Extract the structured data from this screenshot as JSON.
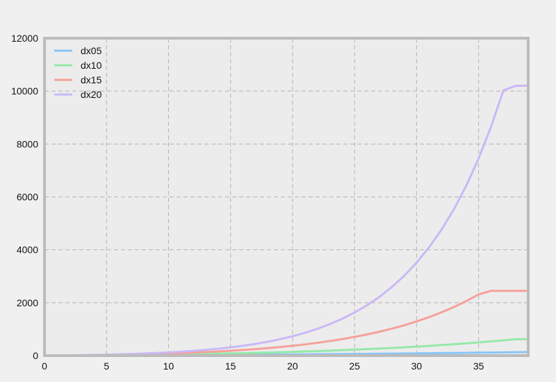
{
  "chart_data": {
    "type": "line",
    "title": "",
    "xlabel": "",
    "ylabel": "",
    "xlim": [
      0,
      39
    ],
    "ylim": [
      0,
      12000
    ],
    "xticks": [
      0,
      5,
      10,
      15,
      20,
      25,
      30,
      35
    ],
    "yticks": [
      0,
      2000,
      4000,
      6000,
      8000,
      10000,
      12000
    ],
    "grid": true,
    "legend_position": "top-left",
    "x": [
      0,
      1,
      2,
      3,
      4,
      5,
      6,
      7,
      8,
      9,
      10,
      11,
      12,
      13,
      14,
      15,
      16,
      17,
      18,
      19,
      20,
      21,
      22,
      23,
      24,
      25,
      26,
      27,
      28,
      29,
      30,
      31,
      32,
      33,
      34,
      35,
      36,
      37,
      38,
      39
    ],
    "series": [
      {
        "name": "dx05",
        "color": "#87c6f7",
        "values": [
          0,
          1,
          3,
          4,
          6,
          8,
          10,
          12,
          14,
          16,
          18,
          20,
          23,
          25,
          28,
          30,
          33,
          36,
          39,
          42,
          45,
          48,
          52,
          55,
          59,
          63,
          67,
          71,
          75,
          80,
          84,
          89,
          94,
          99,
          104,
          110,
          116,
          122,
          128,
          134
        ]
      },
      {
        "name": "dx10",
        "color": "#96e8a8",
        "values": [
          0,
          2,
          5,
          8,
          12,
          16,
          21,
          26,
          31,
          37,
          43,
          50,
          57,
          65,
          74,
          83,
          93,
          104,
          116,
          128,
          142,
          156,
          172,
          188,
          206,
          225,
          245,
          267,
          290,
          315,
          341,
          369,
          399,
          430,
          464,
          500,
          538,
          578,
          620,
          620
        ]
      },
      {
        "name": "dx15",
        "color": "#f6a09a",
        "values": [
          0,
          4,
          8,
          13,
          19,
          26,
          34,
          43,
          54,
          66,
          80,
          96,
          114,
          135,
          158,
          184,
          213,
          246,
          283,
          325,
          372,
          425,
          484,
          550,
          624,
          707,
          800,
          903,
          1019,
          1148,
          1292,
          1454,
          1634,
          1835,
          2060,
          2311,
          2450,
          2450,
          2450,
          2450
        ]
      },
      {
        "name": "dx20",
        "color": "#cab8f7",
        "values": [
          0,
          5,
          11,
          18,
          26,
          36,
          48,
          62,
          78,
          97,
          120,
          147,
          179,
          216,
          260,
          311,
          371,
          441,
          523,
          619,
          731,
          861,
          1012,
          1188,
          1392,
          1628,
          1902,
          2220,
          2589,
          3017,
          3513,
          4088,
          4754,
          5525,
          6418,
          7451,
          8647,
          10030,
          10200,
          10200
        ]
      }
    ]
  }
}
